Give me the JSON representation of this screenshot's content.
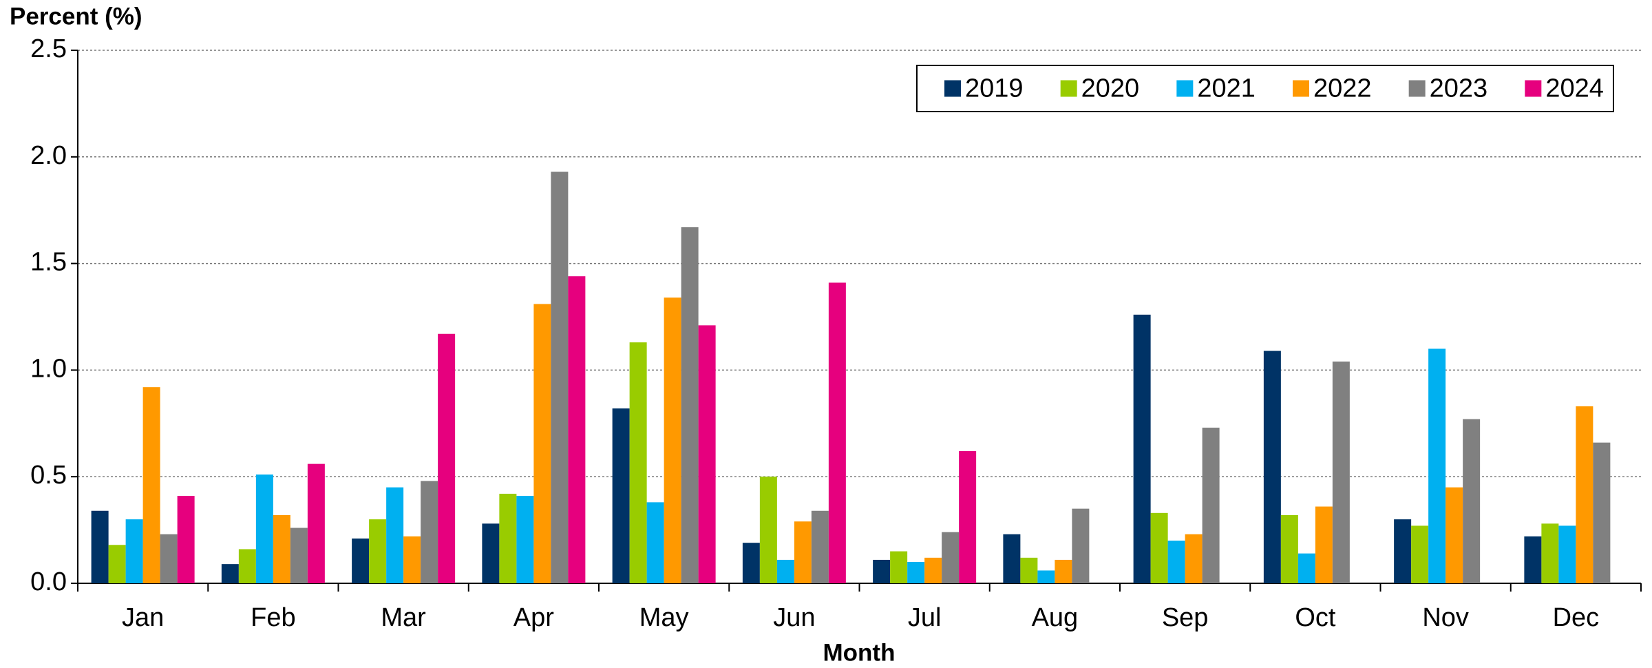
{
  "chart_data": {
    "type": "bar",
    "y_axis_label": "Percent (%)",
    "x_axis_label": "Month",
    "categories": [
      "Jan",
      "Feb",
      "Mar",
      "Apr",
      "May",
      "Jun",
      "Jul",
      "Aug",
      "Sep",
      "Oct",
      "Nov",
      "Dec"
    ],
    "series": [
      {
        "name": "2019",
        "color": "#003366",
        "values": [
          0.34,
          0.09,
          0.21,
          0.28,
          0.82,
          0.19,
          0.11,
          0.23,
          1.26,
          1.09,
          0.3,
          0.22
        ]
      },
      {
        "name": "2020",
        "color": "#99cc00",
        "values": [
          0.18,
          0.16,
          0.3,
          0.42,
          1.13,
          0.5,
          0.15,
          0.12,
          0.33,
          0.32,
          0.27,
          0.28
        ]
      },
      {
        "name": "2021",
        "color": "#00b0f0",
        "values": [
          0.3,
          0.51,
          0.45,
          0.41,
          0.38,
          0.11,
          0.1,
          0.06,
          0.2,
          0.14,
          1.1,
          0.27
        ]
      },
      {
        "name": "2022",
        "color": "#ff9900",
        "values": [
          0.92,
          0.32,
          0.22,
          1.31,
          1.34,
          0.29,
          0.12,
          0.11,
          0.23,
          0.36,
          0.45,
          0.83
        ]
      },
      {
        "name": "2023",
        "color": "#808080",
        "values": [
          0.23,
          0.26,
          0.48,
          1.93,
          1.67,
          0.34,
          0.24,
          0.35,
          0.73,
          1.04,
          0.77,
          0.66
        ]
      },
      {
        "name": "2024",
        "color": "#e6007e",
        "values": [
          0.41,
          0.56,
          1.17,
          1.44,
          1.21,
          1.41,
          0.62,
          null,
          null,
          null,
          null,
          null
        ]
      }
    ],
    "ylim": [
      0,
      2.5
    ],
    "yticks": [
      {
        "value": 0,
        "label": "0.0"
      },
      0.5,
      {
        "value": 1,
        "label": "1.0"
      },
      1.5,
      {
        "value": 2,
        "label": "2.0"
      },
      2.5
    ],
    "grid": true,
    "legend_position": "top-right"
  }
}
